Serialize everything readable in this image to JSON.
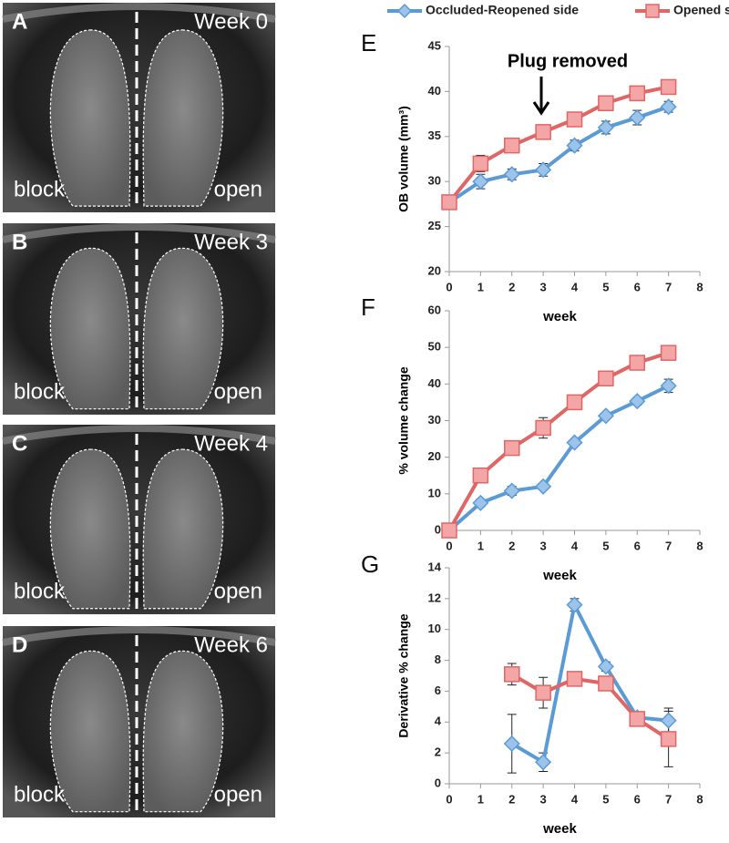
{
  "image_panels": [
    {
      "letter": "A",
      "week": "Week 0",
      "left": "block",
      "right": "open"
    },
    {
      "letter": "B",
      "week": "Week 3",
      "left": "block",
      "right": "open"
    },
    {
      "letter": "C",
      "week": "Week 4",
      "left": "block",
      "right": "open"
    },
    {
      "letter": "D",
      "week": "Week 6",
      "left": "block",
      "right": "open"
    }
  ],
  "chart_data": [
    {
      "type": "line",
      "title": "E",
      "annotation": "Plug removed",
      "x_label": "week",
      "y_label": "OB volume (mm³)",
      "x": [
        0,
        1,
        2,
        3,
        4,
        5,
        6,
        7
      ],
      "series": [
        {
          "name": "Occluded-Reopened side",
          "color": "#5b9bd5",
          "marker": "diamond",
          "values": [
            27.7,
            30,
            30.8,
            31.3,
            34,
            36,
            37.1,
            38.3
          ],
          "errors": [
            0.3,
            0.8,
            0.6,
            0.7,
            0.6,
            0.7,
            0.8,
            0.6
          ]
        },
        {
          "name": "Opened s",
          "color": "#e06666",
          "marker": "square",
          "values": [
            27.7,
            32,
            34,
            35.5,
            36.9,
            38.7,
            39.8,
            40.5
          ],
          "errors": [
            0.2,
            0.9,
            0.3,
            0.3,
            0.3,
            0.3,
            0.3,
            0.3
          ]
        }
      ],
      "xlim": [
        0,
        8
      ],
      "xticks": [
        0,
        1,
        2,
        3,
        4,
        5,
        6,
        7,
        8
      ],
      "ylim": [
        20,
        45
      ],
      "yticks": [
        20,
        25,
        30,
        35,
        40,
        45
      ]
    },
    {
      "type": "line",
      "title": "F",
      "x_label": "week",
      "y_label": "% volume change",
      "x": [
        0,
        1,
        2,
        3,
        4,
        5,
        6,
        7
      ],
      "series": [
        {
          "color": "#5b9bd5",
          "marker": "diamond",
          "values": [
            0,
            7.5,
            10.8,
            12,
            24,
            31.3,
            35.3,
            39.5
          ],
          "errors": [
            0,
            1,
            1.2,
            0.8,
            0.8,
            0.8,
            1,
            1.8
          ]
        },
        {
          "color": "#e06666",
          "marker": "square",
          "values": [
            0,
            15,
            22.5,
            28,
            35,
            41.5,
            45.8,
            48.5
          ],
          "errors": [
            0,
            0.8,
            0.8,
            2.8,
            0.6,
            0.6,
            0.6,
            1.8
          ]
        }
      ],
      "xlim": [
        0,
        8
      ],
      "xticks": [
        0,
        1,
        2,
        3,
        4,
        5,
        6,
        7,
        8
      ],
      "ylim": [
        0,
        60
      ],
      "yticks": [
        0,
        10,
        20,
        30,
        40,
        50,
        60
      ]
    },
    {
      "type": "line",
      "title": "G",
      "x_label": "week",
      "y_label": "Derivative % change",
      "x": [
        2,
        3,
        4,
        5,
        6,
        7
      ],
      "series": [
        {
          "color": "#5b9bd5",
          "marker": "diamond",
          "values": [
            2.6,
            1.4,
            11.6,
            7.6,
            4.3,
            4.1
          ],
          "errors": [
            1.9,
            0.6,
            0.4,
            0.3,
            0.3,
            0.8
          ]
        },
        {
          "color": "#e06666",
          "marker": "square",
          "values": [
            7.1,
            5.9,
            6.8,
            6.5,
            4.2,
            2.9
          ],
          "errors": [
            0.7,
            1,
            0.2,
            0.2,
            0.2,
            1.8
          ]
        }
      ],
      "xlim": [
        0,
        8
      ],
      "xticks": [
        0,
        1,
        2,
        3,
        4,
        5,
        6,
        7,
        8
      ],
      "ylim": [
        0,
        14
      ],
      "yticks": [
        0,
        2,
        4,
        6,
        8,
        10,
        12,
        14
      ]
    }
  ]
}
